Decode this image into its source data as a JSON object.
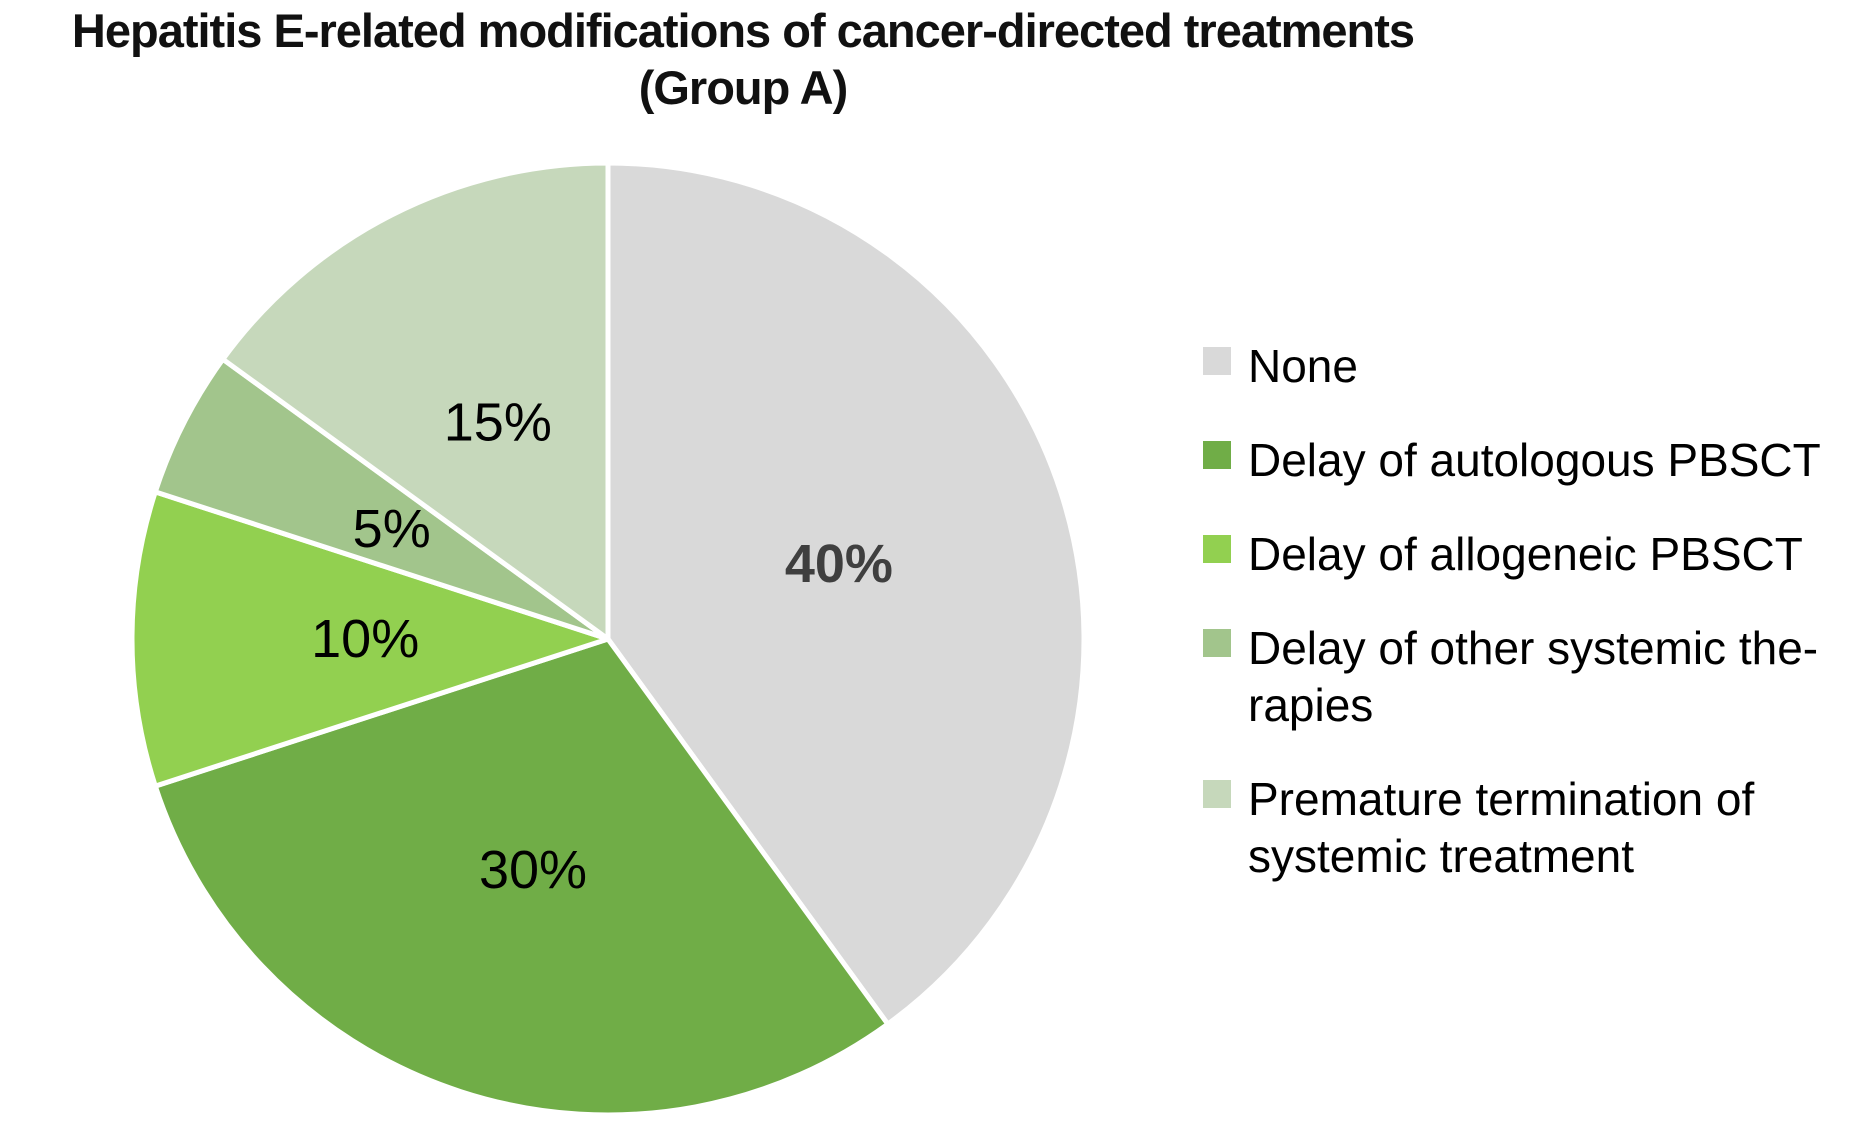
{
  "chart": {
    "title_line1": "Hepatitis E-related modifications of cancer-directed treatments",
    "title_line2": "(Group A)"
  },
  "chart_data": {
    "type": "pie",
    "title": "Hepatitis E-related modifications of cancer-directed treatments (Group A)",
    "start_angle_deg": 0,
    "direction": "clockwise",
    "legend_position": "right",
    "background_color": "#ffffff",
    "separator_color": "#ffffff",
    "slices": [
      {
        "label": "None",
        "legend_text": "None",
        "value": 40,
        "color": "#d9d9d9",
        "data_label": "40%",
        "data_label_color": "#3f3f3f",
        "data_label_weight": "bold"
      },
      {
        "label": "Delay of autologous PBSCT",
        "legend_text": "Delay of autologous PBSCT",
        "value": 30,
        "color": "#70ad47",
        "data_label": "30%",
        "data_label_color": "#000000",
        "data_label_weight": "normal"
      },
      {
        "label": "Delay of allogeneic PBSCT",
        "legend_text": "Delay of allogeneic PBSCT",
        "value": 10,
        "color": "#92d050",
        "data_label": "10%",
        "data_label_color": "#000000",
        "data_label_weight": "normal"
      },
      {
        "label": "Delay of other systemic therapies",
        "legend_text": "Delay of other systemic the-\nrapies",
        "value": 5,
        "color": "#a2c58c",
        "data_label": "5%",
        "data_label_color": "#000000",
        "data_label_weight": "normal"
      },
      {
        "label": "Premature termination of systemic treatment",
        "legend_text": "Premature termination of\nsystemic treatment",
        "value": 15,
        "color": "#c6d8bb",
        "data_label": "15%",
        "data_label_color": "#000000",
        "data_label_weight": "normal"
      }
    ]
  }
}
